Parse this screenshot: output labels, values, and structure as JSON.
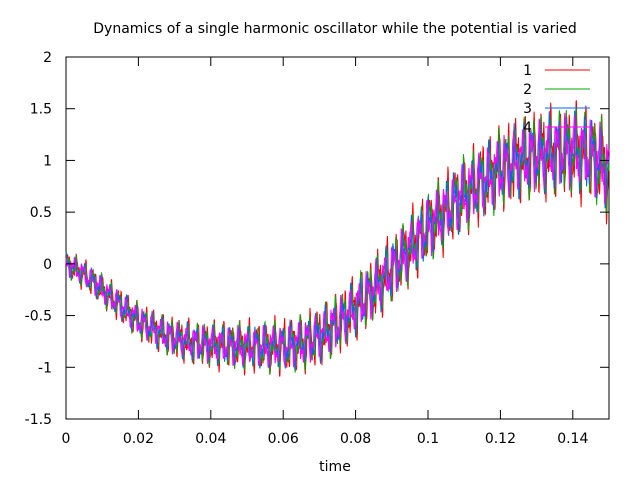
{
  "chart_data": {
    "type": "line",
    "title": "Dynamics of a single harmonic oscillator while the potential is varied",
    "xlabel": "time",
    "ylabel": "",
    "xlim": [
      0,
      0.15
    ],
    "ylim": [
      -1.5,
      2
    ],
    "x_ticks": [
      {
        "value": 0,
        "label": "0"
      },
      {
        "value": 0.02,
        "label": "0.02"
      },
      {
        "value": 0.04,
        "label": "0.04"
      },
      {
        "value": 0.06,
        "label": "0.06"
      },
      {
        "value": 0.08,
        "label": "0.08"
      },
      {
        "value": 0.1,
        "label": "0.1"
      },
      {
        "value": 0.12,
        "label": "0.12"
      },
      {
        "value": 0.14,
        "label": "0.14"
      }
    ],
    "y_ticks": [
      {
        "value": -1.5,
        "label": "-1.5"
      },
      {
        "value": -1,
        "label": "-1"
      },
      {
        "value": -0.5,
        "label": "-0.5"
      },
      {
        "value": 0,
        "label": "0"
      },
      {
        "value": 0.5,
        "label": "0.5"
      },
      {
        "value": 1,
        "label": "1"
      },
      {
        "value": 1.5,
        "label": "1.5"
      },
      {
        "value": 2,
        "label": "2"
      }
    ],
    "grid": false,
    "legend_position": "top-right",
    "x": [
      0,
      0.005,
      0.01,
      0.015,
      0.02,
      0.025,
      0.03,
      0.035,
      0.04,
      0.045,
      0.05,
      0.055,
      0.06,
      0.065,
      0.07,
      0.075,
      0.08,
      0.085,
      0.09,
      0.095,
      0.1,
      0.105,
      0.11,
      0.115,
      0.12,
      0.125,
      0.13,
      0.135,
      0.14,
      0.145,
      0.15
    ],
    "series": [
      {
        "name": "1",
        "color": "#ff0000",
        "amplitude": 0.45,
        "phase": 0.0,
        "values": [
          0.0,
          -0.1,
          -0.25,
          -0.4,
          -0.55,
          -0.65,
          -0.72,
          -0.76,
          -0.78,
          -0.79,
          -0.8,
          -0.8,
          -0.8,
          -0.77,
          -0.7,
          -0.58,
          -0.42,
          -0.25,
          -0.05,
          0.15,
          0.35,
          0.52,
          0.67,
          0.8,
          0.92,
          1.0,
          1.05,
          1.08,
          1.1,
          1.05,
          0.9
        ]
      },
      {
        "name": "2",
        "color": "#00aa00",
        "amplitude": 0.4,
        "phase": 0.6,
        "values": [
          0.0,
          -0.1,
          -0.25,
          -0.4,
          -0.55,
          -0.65,
          -0.72,
          -0.76,
          -0.78,
          -0.79,
          -0.8,
          -0.8,
          -0.8,
          -0.77,
          -0.7,
          -0.58,
          -0.42,
          -0.25,
          -0.05,
          0.15,
          0.35,
          0.52,
          0.67,
          0.8,
          0.92,
          1.0,
          1.05,
          1.08,
          1.1,
          1.05,
          0.9
        ]
      },
      {
        "name": "3",
        "color": "#0066ff",
        "amplitude": 0.36,
        "phase": 1.3,
        "values": [
          0.0,
          -0.1,
          -0.25,
          -0.4,
          -0.55,
          -0.65,
          -0.72,
          -0.76,
          -0.78,
          -0.79,
          -0.8,
          -0.8,
          -0.8,
          -0.77,
          -0.7,
          -0.58,
          -0.42,
          -0.25,
          -0.05,
          0.15,
          0.35,
          0.52,
          0.67,
          0.8,
          0.92,
          1.0,
          1.05,
          1.08,
          1.1,
          1.05,
          0.9
        ]
      },
      {
        "name": "4",
        "color": "#ff00ff",
        "amplitude": 0.33,
        "phase": 2.1,
        "values": [
          0.0,
          -0.1,
          -0.25,
          -0.4,
          -0.55,
          -0.65,
          -0.72,
          -0.76,
          -0.78,
          -0.79,
          -0.8,
          -0.8,
          -0.8,
          -0.77,
          -0.7,
          -0.58,
          -0.42,
          -0.25,
          -0.05,
          0.15,
          0.35,
          0.52,
          0.67,
          0.8,
          0.92,
          1.0,
          1.05,
          1.08,
          1.1,
          1.05,
          0.9
        ]
      }
    ]
  }
}
